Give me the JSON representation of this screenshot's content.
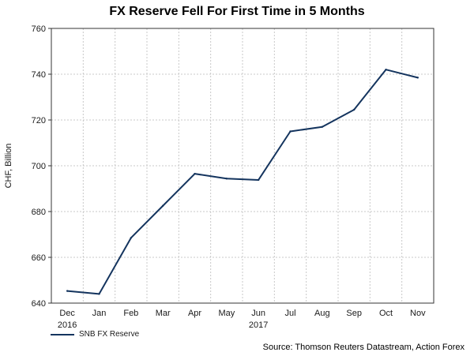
{
  "chart_data": {
    "type": "line",
    "title": "FX Reserve Fell For First Time in 5 Months",
    "ylabel": "CHF, Billion",
    "xlabel": "",
    "ylim": [
      640,
      760
    ],
    "yticks": [
      640,
      660,
      680,
      700,
      720,
      740,
      760
    ],
    "grid": true,
    "legend_position": "bottom-left",
    "categories": [
      "Dec",
      "Jan",
      "Feb",
      "Mar",
      "Apr",
      "May",
      "Jun",
      "Jul",
      "Aug",
      "Sep",
      "Oct",
      "Nov"
    ],
    "year_labels": [
      {
        "category": "Dec",
        "year": "2016"
      },
      {
        "category": "Jun",
        "year": "2017"
      }
    ],
    "series": [
      {
        "name": "SNB FX Reserve",
        "color": "#14345e",
        "x": [
          "Dec 2016",
          "Jan 2017",
          "Feb 2017",
          "Mar 2017",
          "Apr 2017",
          "May 2017",
          "Jun 2017",
          "Jul 2017",
          "Aug 2017",
          "Sep 2017",
          "Oct 2017",
          "Nov 2017"
        ],
        "values": [
          645.3,
          644,
          668.5,
          682.5,
          696.5,
          694.4,
          693.8,
          715,
          717,
          724.5,
          742,
          738.5
        ]
      }
    ],
    "source": "Source: Thomson Reuters Datastream, Action Forex"
  }
}
